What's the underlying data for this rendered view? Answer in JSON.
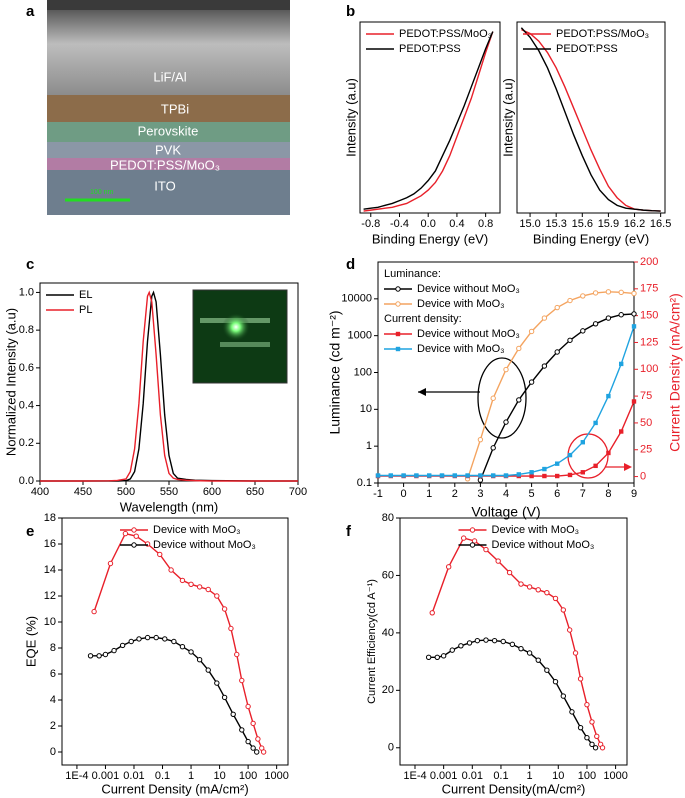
{
  "chart_data": [
    {
      "type": "image",
      "panel_label": "a",
      "layers": [
        "LiF/Al",
        "TPBi",
        "Perovskite",
        "PVK",
        "PEDOT:PSS/MoO₃",
        "ITO"
      ],
      "scale_bar": "100 nm"
    },
    {
      "type": "line",
      "panel_label": "b",
      "xlabel": "Binding Energy (eV)",
      "ylabel": "Intensity (a.u)",
      "xlim": [
        -0.95,
        1.0
      ],
      "ylim": [
        0,
        1
      ],
      "xticks": [
        -0.8,
        -0.4,
        {
          "value": 0,
          "label": "0.0"
        },
        0.4,
        0.8
      ],
      "legend": "upper left",
      "x": [
        -0.9,
        -0.8,
        -0.7,
        -0.6,
        -0.5,
        -0.4,
        -0.3,
        -0.2,
        -0.1,
        0,
        0.1,
        0.2,
        0.3,
        0.4,
        0.5,
        0.6,
        0.7,
        0.8,
        0.9
      ],
      "series": [
        {
          "name": "PEDOT:PSS/MoO₃",
          "color": "#e8202a",
          "values": [
            0.01,
            0.015,
            0.02,
            0.025,
            0.03,
            0.04,
            0.05,
            0.07,
            0.09,
            0.12,
            0.16,
            0.22,
            0.3,
            0.4,
            0.5,
            0.6,
            0.72,
            0.84,
            0.95
          ]
        },
        {
          "name": "PEDOT:PSS",
          "color": "#000000",
          "values": [
            0.02,
            0.025,
            0.03,
            0.04,
            0.05,
            0.065,
            0.08,
            0.1,
            0.13,
            0.17,
            0.22,
            0.3,
            0.38,
            0.47,
            0.56,
            0.66,
            0.76,
            0.86,
            0.95
          ]
        }
      ]
    },
    {
      "type": "line",
      "xlabel": "Binding Energy (eV)",
      "ylabel": "Intensity (a.u)",
      "xlim": [
        14.85,
        16.55
      ],
      "ylim": [
        0,
        1
      ],
      "xticks": [
        {
          "value": 15,
          "label": "15.0"
        },
        15.3,
        15.6,
        15.9,
        16.2,
        16.5
      ],
      "legend": "upper left",
      "x": [
        14.9,
        15.0,
        15.1,
        15.2,
        15.3,
        15.4,
        15.5,
        15.6,
        15.7,
        15.8,
        15.9,
        16.0,
        16.1,
        16.2,
        16.3,
        16.4,
        16.5
      ],
      "series": [
        {
          "name": "PEDOT:PSS/MoO₃",
          "color": "#e8202a",
          "values": [
            0.96,
            0.94,
            0.9,
            0.84,
            0.76,
            0.66,
            0.55,
            0.44,
            0.33,
            0.23,
            0.14,
            0.08,
            0.04,
            0.02,
            0.015,
            0.012,
            0.01
          ]
        },
        {
          "name": "PEDOT:PSS",
          "color": "#000000",
          "values": [
            0.97,
            0.92,
            0.85,
            0.76,
            0.65,
            0.53,
            0.41,
            0.3,
            0.2,
            0.12,
            0.07,
            0.04,
            0.025,
            0.02,
            0.015,
            0.012,
            0.01
          ]
        }
      ]
    },
    {
      "type": "line",
      "panel_label": "c",
      "xlabel": "Wavelength (nm)",
      "ylabel": "Normalized  Intensity (a.u)",
      "xlim": [
        400,
        700
      ],
      "ylim": [
        0,
        1.05
      ],
      "xticks": [
        400,
        450,
        500,
        550,
        600,
        650,
        700
      ],
      "yticks": [
        {
          "value": 0,
          "label": "0.0"
        },
        0.2,
        0.4,
        0.6,
        0.8,
        {
          "value": 1,
          "label": "1.0"
        }
      ],
      "legend": "upper left",
      "series": [
        {
          "name": "EL",
          "color": "#000000",
          "x": [
            400,
            450,
            480,
            490,
            500,
            505,
            510,
            515,
            520,
            525,
            530,
            532,
            535,
            540,
            545,
            550,
            555,
            560,
            570,
            580,
            600,
            650,
            700
          ],
          "values": [
            0,
            0,
            0,
            0,
            0.002,
            0.011,
            0.05,
            0.17,
            0.41,
            0.74,
            0.98,
            1.0,
            0.95,
            0.67,
            0.35,
            0.135,
            0.04,
            0.015,
            0.008,
            0.004,
            0.002,
            0,
            0
          ]
        },
        {
          "name": "PL",
          "color": "#e8202a",
          "x": [
            400,
            450,
            480,
            490,
            500,
            505,
            510,
            515,
            520,
            525,
            527,
            530,
            535,
            540,
            545,
            550,
            555,
            560,
            570,
            580,
            600,
            650,
            700
          ],
          "values": [
            0,
            0,
            0.001,
            0.003,
            0.011,
            0.05,
            0.17,
            0.41,
            0.74,
            0.98,
            1.0,
            0.95,
            0.67,
            0.35,
            0.135,
            0.04,
            0.015,
            0.008,
            0.004,
            0.002,
            0,
            0,
            0
          ]
        }
      ]
    },
    {
      "type": "line",
      "panel_label": "d",
      "xlabel": "Voltage (V)",
      "ylabel": "Luminance (cd m⁻²)",
      "y2label": "Current Density (mA/cm²)",
      "xlim": [
        -1,
        9
      ],
      "ylim": [
        0.1,
        100000
      ],
      "yscale": "log",
      "y2lim": [
        -6,
        200
      ],
      "y2color": "#e8202a",
      "xticks": [
        -1,
        0,
        1,
        2,
        3,
        4,
        5,
        6,
        7,
        8,
        9
      ],
      "yticks": [
        0.1,
        1,
        10,
        100,
        1000,
        10000
      ],
      "y2ticks": [
        0,
        25,
        50,
        75,
        100,
        125,
        150,
        175,
        200
      ],
      "legend": "upper left",
      "legend_titles": [
        "Luminance:",
        "Current density:"
      ],
      "x": [
        -1,
        -0.5,
        0,
        0.5,
        1,
        1.5,
        2,
        2.5,
        3,
        3.5,
        4,
        4.5,
        5,
        5.5,
        6,
        6.5,
        7,
        7.5,
        8,
        8.5,
        9
      ],
      "series": [
        {
          "name": "Device without MoO₃",
          "color": "#000000",
          "marker": "circle",
          "values": [
            null,
            null,
            null,
            null,
            null,
            null,
            null,
            null,
            0.12,
            0.9,
            4.5,
            18,
            55,
            150,
            360,
            750,
            1350,
            2100,
            3000,
            3700,
            3900
          ]
        },
        {
          "name": "Device with MoO₃",
          "color": "#f4a460",
          "marker": "circle",
          "values": [
            null,
            null,
            null,
            null,
            null,
            null,
            null,
            0.13,
            1.5,
            20,
            120,
            450,
            1300,
            3000,
            5800,
            9000,
            12000,
            14500,
            15500,
            15000,
            14000
          ]
        },
        {
          "name": "Device without MoO₃",
          "color": "#e8202a",
          "marker": "square",
          "axis": "y2",
          "values": [
            0.5,
            0.5,
            0.5,
            0.5,
            0.5,
            0.5,
            0.5,
            0.5,
            0.5,
            0.5,
            0.5,
            0.5,
            0.5,
            0.5,
            0.5,
            1.5,
            4,
            10,
            22,
            42,
            70
          ]
        },
        {
          "name": "Device with MoO₃",
          "color": "#1fa3e0",
          "marker": "square",
          "axis": "y2",
          "values": [
            1,
            1,
            1,
            1,
            1,
            1,
            1,
            1,
            1,
            1,
            1,
            2,
            4,
            7,
            12,
            20,
            32,
            50,
            75,
            105,
            140
          ]
        }
      ]
    },
    {
      "type": "line",
      "panel_label": "e",
      "xlabel": "Current Density (mA/cm²)",
      "ylabel": "EQE (%)",
      "xlim": [
        3e-05,
        2500
      ],
      "xscale": "log",
      "ylim": [
        -1,
        18
      ],
      "xticks": [
        {
          "value": 0.0001,
          "label": "1E-4"
        },
        0.001,
        0.01,
        0.1,
        1,
        10,
        100,
        1000
      ],
      "yticks": [
        0,
        2,
        4,
        6,
        8,
        10,
        12,
        14,
        16,
        18
      ],
      "legend": "upper center",
      "series": [
        {
          "name": "Device with MoO₃",
          "color": "#e8202a",
          "marker": "circle",
          "x": [
            0.0004,
            0.0015,
            0.005,
            0.012,
            0.03,
            0.08,
            0.2,
            0.5,
            1,
            2,
            4,
            8,
            15,
            25,
            40,
            60,
            100,
            150,
            220,
            300,
            350
          ],
          "values": [
            10.8,
            14.5,
            16.8,
            16.6,
            16.0,
            15.2,
            14.0,
            13.2,
            12.9,
            12.7,
            12.5,
            12.0,
            11,
            9.5,
            7.5,
            5.5,
            3.5,
            2.2,
            1.0,
            0.3,
            0
          ]
        },
        {
          "name": "Device without MoO₃",
          "color": "#000000",
          "marker": "circle",
          "x": [
            0.0003,
            0.0006,
            0.001,
            0.002,
            0.004,
            0.008,
            0.015,
            0.03,
            0.06,
            0.12,
            0.25,
            0.5,
            1,
            2,
            4,
            8,
            15,
            30,
            60,
            100,
            150,
            200
          ],
          "values": [
            7.4,
            7.4,
            7.5,
            7.8,
            8.2,
            8.5,
            8.7,
            8.8,
            8.8,
            8.7,
            8.5,
            8.1,
            7.7,
            7.1,
            6.3,
            5.3,
            4.2,
            2.9,
            1.7,
            0.8,
            0.3,
            0
          ]
        }
      ]
    },
    {
      "type": "line",
      "panel_label": "f",
      "xlabel": "Current Density(mA/cm²)",
      "ylabel": "Current Efficiency(cd A⁻¹)",
      "xlim": [
        3e-05,
        2500
      ],
      "xscale": "log",
      "ylim": [
        -6,
        80
      ],
      "xticks": [
        {
          "value": 0.0001,
          "label": "1E-4"
        },
        0.001,
        0.01,
        0.1,
        1,
        10,
        100,
        1000
      ],
      "yticks": [
        0,
        20,
        40,
        60,
        80
      ],
      "legend": "upper center",
      "series": [
        {
          "name": "Device with MoO₃",
          "color": "#e8202a",
          "marker": "circle",
          "x": [
            0.0004,
            0.0015,
            0.005,
            0.012,
            0.03,
            0.08,
            0.2,
            0.5,
            1,
            2,
            4,
            8,
            15,
            25,
            40,
            60,
            100,
            150,
            220,
            300,
            350
          ],
          "values": [
            47,
            63,
            73,
            72,
            69,
            65,
            61,
            57,
            56,
            55,
            54,
            52,
            48,
            41,
            33,
            24,
            15,
            9,
            4,
            1.2,
            0
          ]
        },
        {
          "name": "Device without MoO₃",
          "color": "#000000",
          "marker": "circle",
          "x": [
            0.0003,
            0.0006,
            0.001,
            0.002,
            0.004,
            0.008,
            0.015,
            0.03,
            0.06,
            0.12,
            0.25,
            0.5,
            1,
            2,
            4,
            8,
            15,
            30,
            60,
            100,
            150,
            200
          ],
          "values": [
            31.5,
            31.5,
            32,
            34,
            35.5,
            36.5,
            37.3,
            37.5,
            37.3,
            37,
            36,
            34.5,
            33,
            30.5,
            27,
            23,
            18,
            12.5,
            7,
            3.5,
            1.2,
            0
          ]
        }
      ]
    }
  ]
}
